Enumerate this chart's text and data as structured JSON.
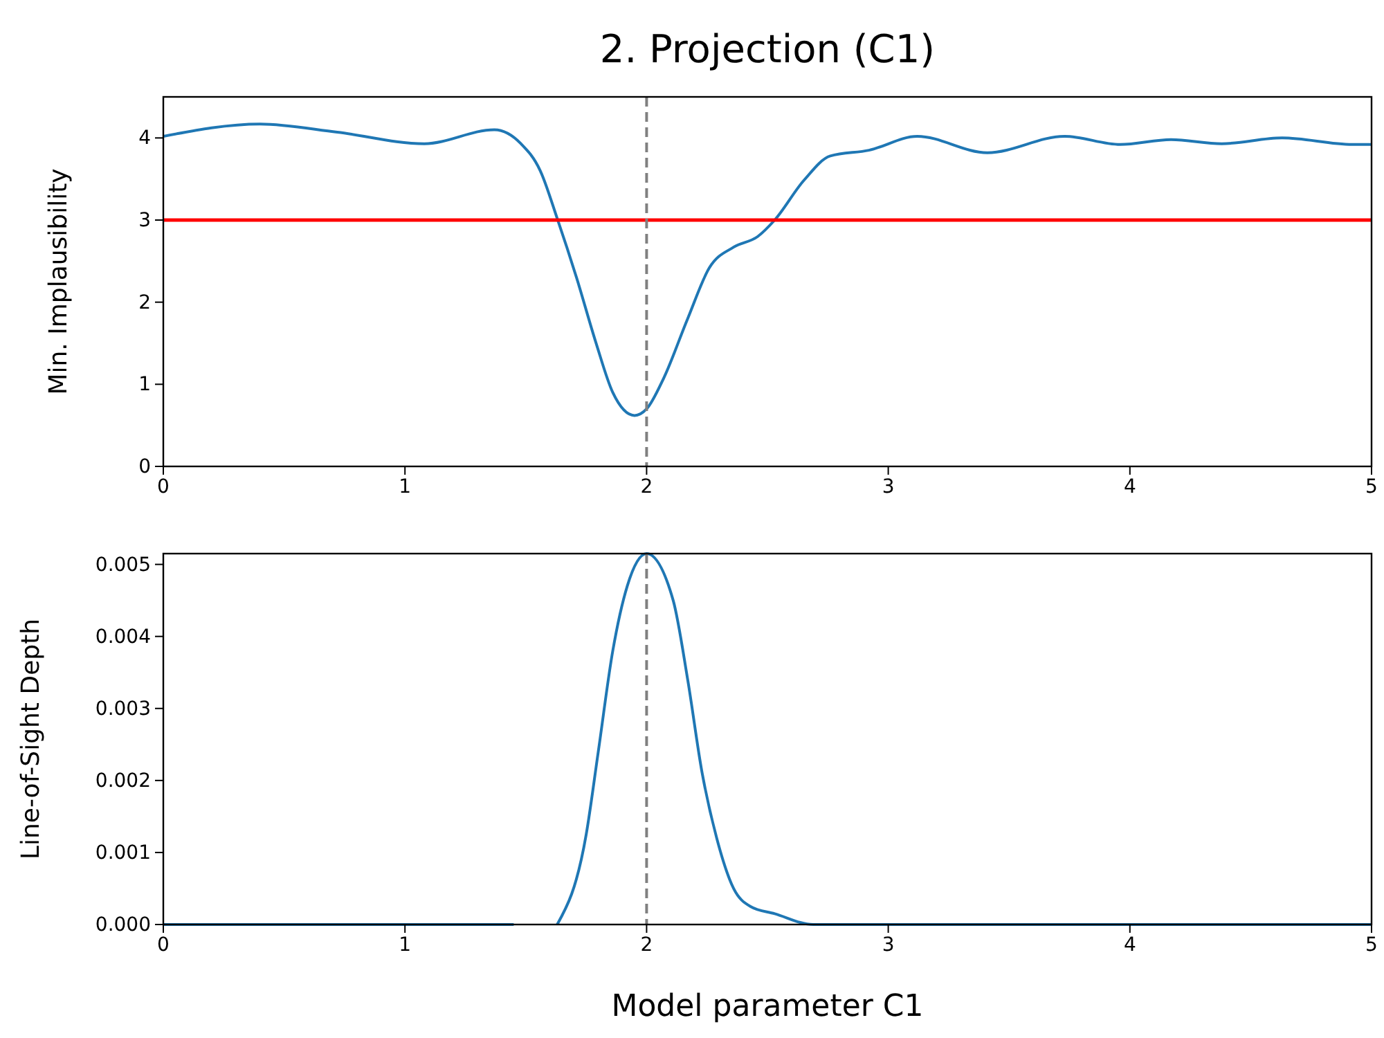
{
  "chart_data": [
    {
      "type": "line",
      "title": "2. Projection (C1)",
      "ylabel": "Min. Implausibility",
      "x": [
        0,
        0.4,
        0.72,
        1.08,
        1.37,
        1.48,
        1.56,
        1.63,
        1.71,
        1.79,
        1.86,
        1.95,
        2.0,
        2.07,
        2.17,
        2.26,
        2.36,
        2.46,
        2.53,
        2.65,
        2.76,
        2.92,
        3.12,
        3.41,
        3.73,
        3.96,
        4.17,
        4.38,
        4.63,
        4.92,
        5.0
      ],
      "series": [
        {
          "color": "#1f77b4",
          "values": [
            4.02,
            4.17,
            4.07,
            3.93,
            4.1,
            3.93,
            3.6,
            3.02,
            2.3,
            1.51,
            0.9,
            0.62,
            0.7,
            1.07,
            1.8,
            2.42,
            2.67,
            2.8,
            3.0,
            3.48,
            3.78,
            3.85,
            4.02,
            3.82,
            4.02,
            3.92,
            3.98,
            3.93,
            4.0,
            3.92,
            3.92
          ]
        }
      ],
      "xlim": [
        0,
        5
      ],
      "xticks": [
        0,
        1,
        2,
        3,
        4,
        5
      ],
      "ylim": [
        0,
        4.5
      ],
      "yticks": [
        0,
        1,
        2,
        3,
        4
      ],
      "ref_lines": [
        {
          "axis": "y",
          "value": 3,
          "color": "#ff0000",
          "line_style": "solid"
        },
        {
          "axis": "x",
          "value": 2,
          "color": "#808080",
          "line_style": "dashed"
        }
      ]
    },
    {
      "type": "line",
      "xlabel": "Model parameter C1",
      "ylabel": "Line-of-Sight Depth",
      "x": [
        0,
        1.45,
        1.55,
        1.63,
        1.75,
        1.8,
        1.86,
        1.92,
        2.0,
        2.11,
        2.17,
        2.23,
        2.29,
        2.36,
        2.43,
        2.53,
        2.69,
        5.0
      ],
      "series": [
        {
          "color": "#1f77b4",
          "values": [
            0,
            0,
            null,
            0,
            0.00125,
            0.0024,
            0.0038,
            0.0047,
            0.00515,
            0.0045,
            0.0034,
            0.0021,
            0.0012,
            0.0005,
            0.00025,
            0.00015,
            0,
            0
          ]
        }
      ],
      "xlim": [
        0,
        5
      ],
      "xticks": [
        0,
        1,
        2,
        3,
        4,
        5
      ],
      "ylim": [
        0,
        0.00515
      ],
      "yticks": [
        {
          "value": 0,
          "label": "0.000"
        },
        {
          "value": 0.001,
          "label": "0.001"
        },
        {
          "value": 0.002,
          "label": "0.002"
        },
        {
          "value": 0.003,
          "label": "0.003"
        },
        {
          "value": 0.004,
          "label": "0.004"
        },
        {
          "value": 0.005,
          "label": "0.005"
        }
      ],
      "ref_lines": [
        {
          "axis": "x",
          "value": 2,
          "color": "#808080",
          "line_style": "dashed"
        }
      ]
    }
  ]
}
